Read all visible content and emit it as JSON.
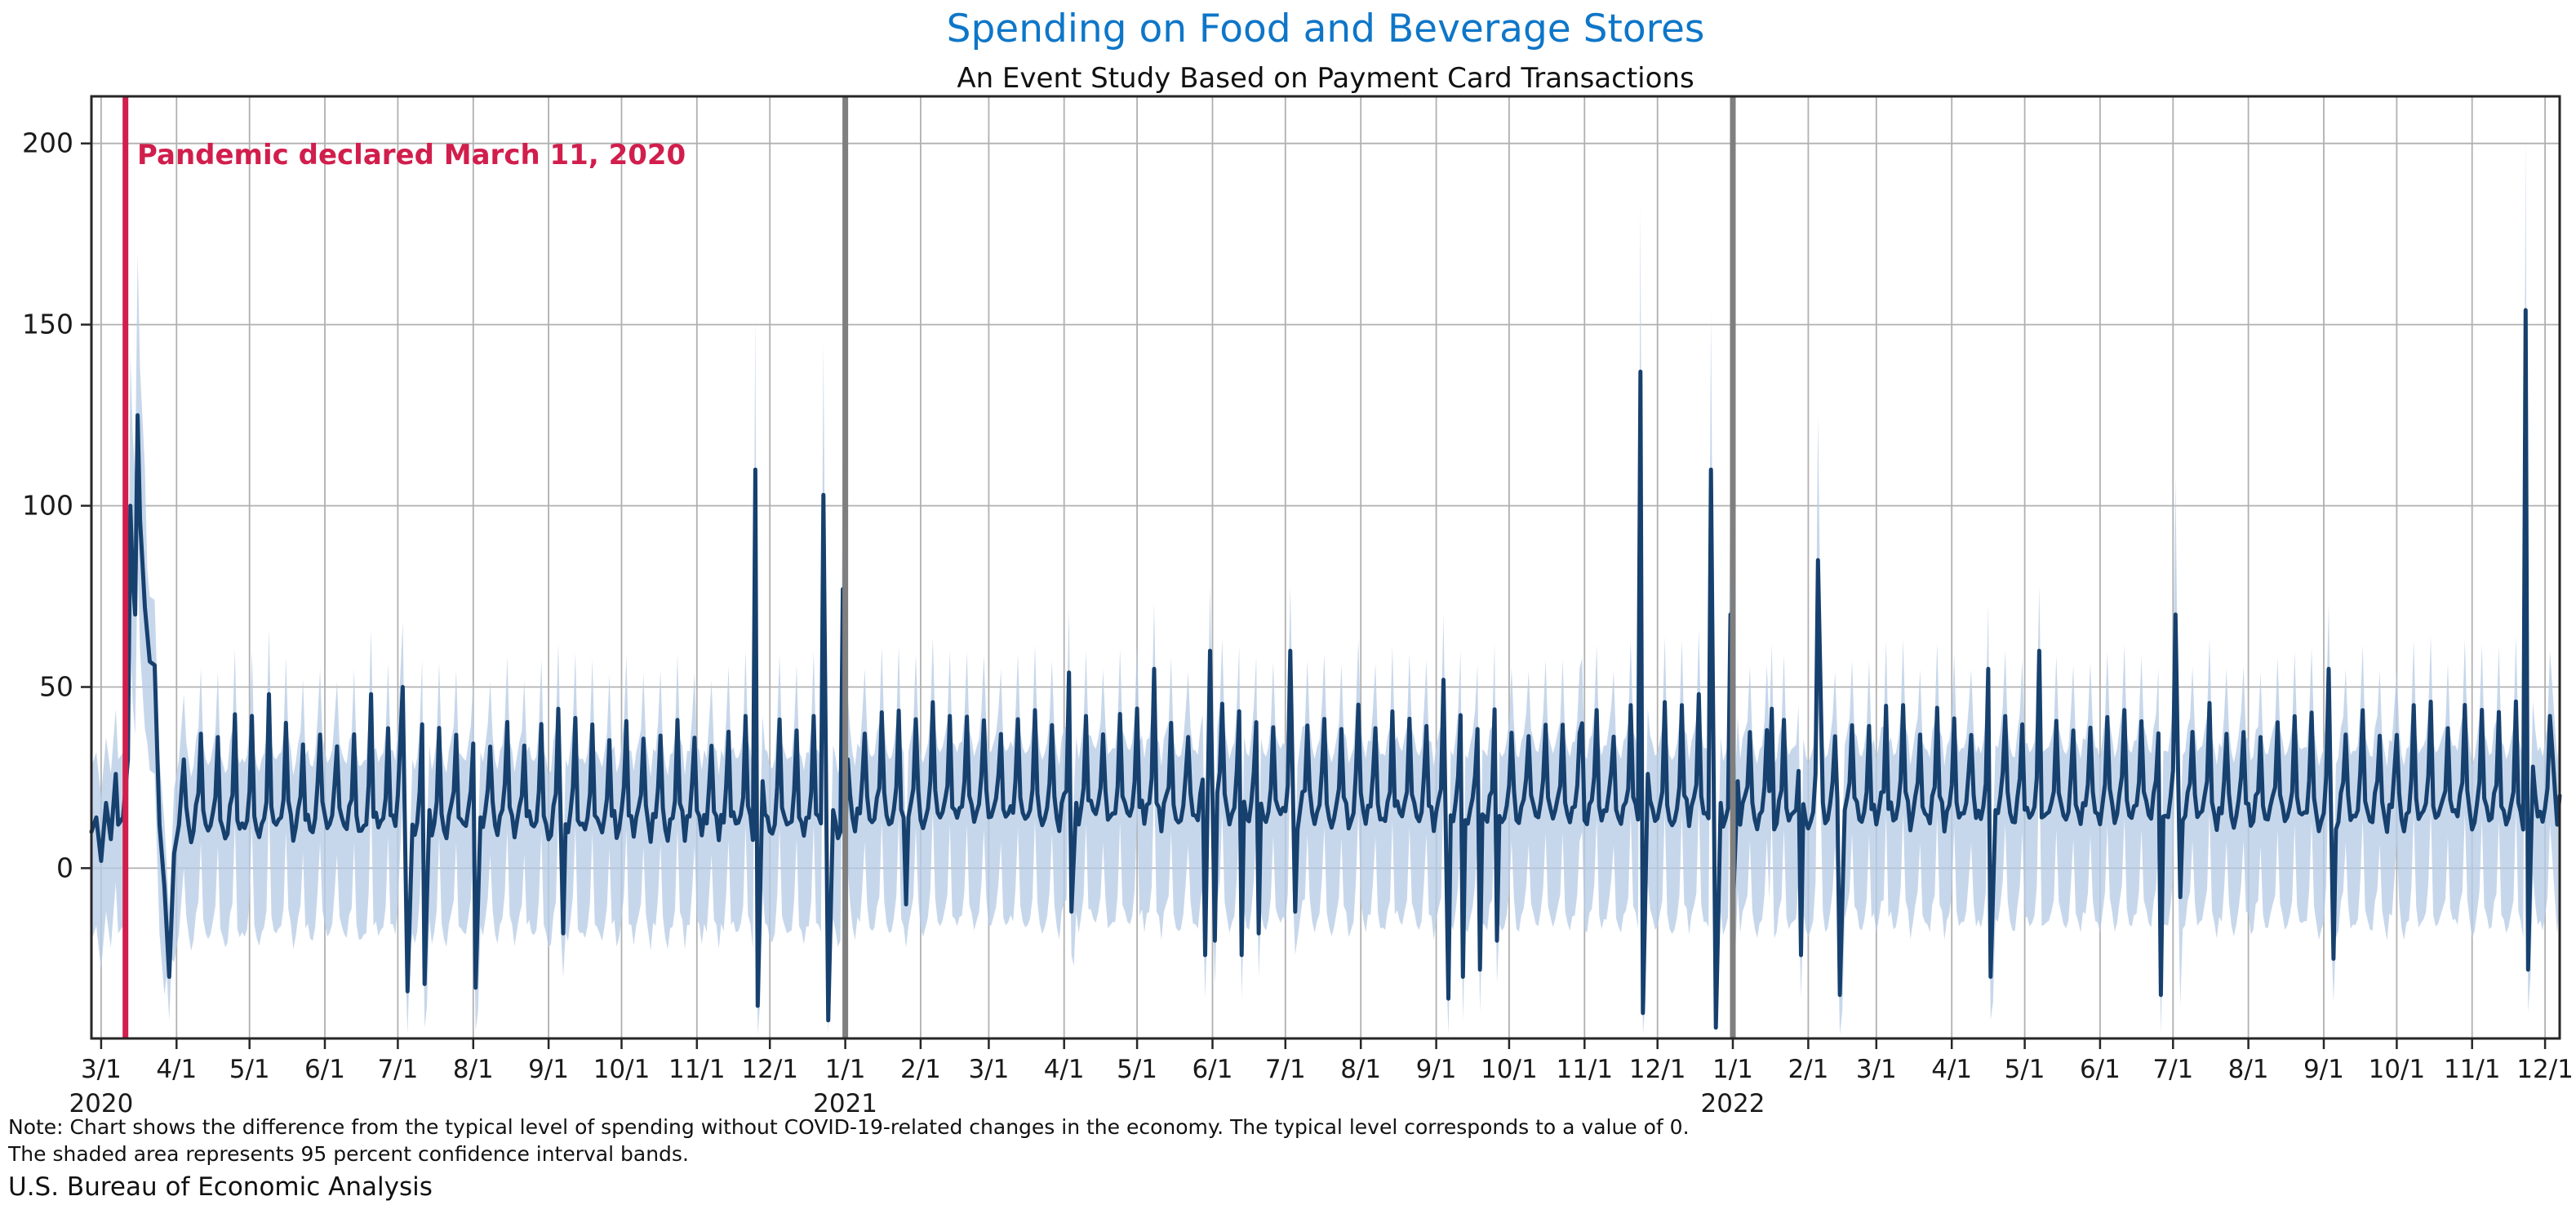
{
  "header": {
    "title": "Spending on Food and Beverage Stores",
    "subtitle": "An Event Study Based on Payment Card Transactions",
    "title_color": "#0e76c8"
  },
  "annotation": {
    "text": "Pandemic declared March 11, 2020",
    "date": "2020-03-11",
    "color": "#d11e4c"
  },
  "footnote": {
    "line1": "Note: Chart shows the difference from the typical level of spending without COVID-19-related changes in the economy. The typical level corresponds to a value of 0.",
    "line2": "The shaded area represents 95 percent confidence interval bands.",
    "source": "U.S. Bureau of Economic Analysis"
  },
  "chart_data": {
    "type": "line",
    "title": "Spending on Food and Beverage Stores",
    "subtitle": "An Event Study Based on Payment Card Transactions",
    "xlabel": "",
    "ylabel": "",
    "grid": true,
    "legend": "none",
    "x_range": {
      "start": "2020-02-26",
      "end": "2022-12-07"
    },
    "y_range": [
      -47,
      213
    ],
    "y_ticks": [
      0,
      50,
      100,
      150,
      200
    ],
    "x_ticks": [
      {
        "date": "2020-03-01",
        "label": "3/1",
        "year": "2020"
      },
      {
        "date": "2020-04-01",
        "label": "4/1"
      },
      {
        "date": "2020-05-01",
        "label": "5/1"
      },
      {
        "date": "2020-06-01",
        "label": "6/1"
      },
      {
        "date": "2020-07-01",
        "label": "7/1"
      },
      {
        "date": "2020-08-01",
        "label": "8/1"
      },
      {
        "date": "2020-09-01",
        "label": "9/1"
      },
      {
        "date": "2020-10-01",
        "label": "10/1"
      },
      {
        "date": "2020-11-01",
        "label": "11/1"
      },
      {
        "date": "2020-12-01",
        "label": "12/1"
      },
      {
        "date": "2021-01-01",
        "label": "1/1",
        "year": "2021"
      },
      {
        "date": "2021-02-01",
        "label": "2/1"
      },
      {
        "date": "2021-03-01",
        "label": "3/1"
      },
      {
        "date": "2021-04-01",
        "label": "4/1"
      },
      {
        "date": "2021-05-01",
        "label": "5/1"
      },
      {
        "date": "2021-06-01",
        "label": "6/1"
      },
      {
        "date": "2021-07-01",
        "label": "7/1"
      },
      {
        "date": "2021-08-01",
        "label": "8/1"
      },
      {
        "date": "2021-09-01",
        "label": "9/1"
      },
      {
        "date": "2021-10-01",
        "label": "10/1"
      },
      {
        "date": "2021-11-01",
        "label": "11/1"
      },
      {
        "date": "2021-12-01",
        "label": "12/1"
      },
      {
        "date": "2022-01-01",
        "label": "1/1",
        "year": "2022"
      },
      {
        "date": "2022-02-01",
        "label": "2/1"
      },
      {
        "date": "2022-03-01",
        "label": "3/1"
      },
      {
        "date": "2022-04-01",
        "label": "4/1"
      },
      {
        "date": "2022-05-01",
        "label": "5/1"
      },
      {
        "date": "2022-06-01",
        "label": "6/1"
      },
      {
        "date": "2022-07-01",
        "label": "7/1"
      },
      {
        "date": "2022-08-01",
        "label": "8/1"
      },
      {
        "date": "2022-09-01",
        "label": "9/1"
      },
      {
        "date": "2022-10-01",
        "label": "10/1"
      },
      {
        "date": "2022-11-01",
        "label": "11/1"
      },
      {
        "date": "2022-12-01",
        "label": "12/1"
      }
    ],
    "event_vlines": [
      {
        "date": "2021-01-01"
      },
      {
        "date": "2022-01-01"
      }
    ],
    "colors": {
      "line": "#16406e",
      "band": "#b7cce5",
      "band_alpha": 0.78,
      "grid": "#b0b0b0",
      "spine": "#262626",
      "vline_year": "#7f7f7f",
      "vline_pandemic": "#d11e4c"
    },
    "weekday_baseline": {
      "mon": 13,
      "tue": 10,
      "wed": 12,
      "thu": 15,
      "fri": 21,
      "sat": 38,
      "sun": 16
    },
    "baseline_drift": [
      {
        "from": "2021-01-01",
        "add": 3
      }
    ],
    "jitter": {
      "seed": 7,
      "base_amp": 3,
      "peak_amp": 5
    },
    "event_bridge_max_gap": 3,
    "band_model": {
      "upper_offset": 18,
      "lower_offset": 30,
      "spike_threshold": 65,
      "spike_upper_offset": 30,
      "spike_upper_scale": 0.12,
      "spike_lower_offset": 25,
      "spike_lower_scale": 0.12,
      "dip_threshold": -10,
      "dip_upper_offset": 18,
      "dip_lower_offset": 12
    },
    "events": [
      [
        "2020-02-26",
        10
      ],
      [
        "2020-02-28",
        14
      ],
      [
        "2020-03-01",
        2
      ],
      [
        "2020-03-03",
        18
      ],
      [
        "2020-03-05",
        8
      ],
      [
        "2020-03-07",
        26
      ],
      [
        "2020-03-08",
        12
      ],
      [
        "2020-03-10",
        14
      ],
      [
        "2020-03-12",
        30
      ],
      [
        "2020-03-13",
        100
      ],
      [
        "2020-03-14",
        80
      ],
      [
        "2020-03-15",
        70
      ],
      [
        "2020-03-16",
        125
      ],
      [
        "2020-03-17",
        96
      ],
      [
        "2020-03-19",
        72
      ],
      [
        "2020-03-21",
        57
      ],
      [
        "2020-03-23",
        56
      ],
      [
        "2020-03-25",
        12
      ],
      [
        "2020-03-27",
        -5
      ],
      [
        "2020-03-29",
        -30
      ],
      [
        "2020-03-31",
        4
      ],
      [
        "2020-04-02",
        12
      ],
      [
        "2020-04-04",
        30
      ],
      [
        "2020-05-09",
        48
      ],
      [
        "2020-06-20",
        48
      ],
      [
        "2020-07-01",
        20
      ],
      [
        "2020-07-03",
        50
      ],
      [
        "2020-07-05",
        -34
      ],
      [
        "2020-07-07",
        12
      ],
      [
        "2020-07-12",
        -32
      ],
      [
        "2020-07-14",
        16
      ],
      [
        "2020-08-02",
        -33
      ],
      [
        "2020-08-04",
        14
      ],
      [
        "2020-09-05",
        44
      ],
      [
        "2020-09-07",
        -18
      ],
      [
        "2020-10-31",
        36
      ],
      [
        "2020-11-21",
        42
      ],
      [
        "2020-11-25",
        110
      ],
      [
        "2020-11-26",
        -38
      ],
      [
        "2020-11-28",
        24
      ],
      [
        "2020-12-12",
        38
      ],
      [
        "2020-12-19",
        42
      ],
      [
        "2020-12-23",
        103
      ],
      [
        "2020-12-25",
        -42
      ],
      [
        "2020-12-27",
        16
      ],
      [
        "2020-12-31",
        77
      ],
      [
        "2021-01-01",
        8
      ],
      [
        "2021-01-02",
        30
      ],
      [
        "2021-01-16",
        43
      ],
      [
        "2021-01-26",
        -10
      ],
      [
        "2021-02-13",
        42
      ],
      [
        "2021-04-03",
        54
      ],
      [
        "2021-04-04",
        -12
      ],
      [
        "2021-04-06",
        18
      ],
      [
        "2021-05-08",
        55
      ],
      [
        "2021-05-09",
        18
      ],
      [
        "2021-05-29",
        -24
      ],
      [
        "2021-05-31",
        60
      ],
      [
        "2021-06-02",
        -20
      ],
      [
        "2021-06-13",
        -24
      ],
      [
        "2021-06-20",
        -18
      ],
      [
        "2021-07-03",
        60
      ],
      [
        "2021-07-05",
        -12
      ],
      [
        "2021-09-04",
        52
      ],
      [
        "2021-09-06",
        -36
      ],
      [
        "2021-09-12",
        -30
      ],
      [
        "2021-09-19",
        -28
      ],
      [
        "2021-09-26",
        -20
      ],
      [
        "2021-10-31",
        40
      ],
      [
        "2021-11-20",
        45
      ],
      [
        "2021-11-24",
        137
      ],
      [
        "2021-11-25",
        -40
      ],
      [
        "2021-11-27",
        26
      ],
      [
        "2021-12-11",
        45
      ],
      [
        "2021-12-18",
        48
      ],
      [
        "2021-12-23",
        110
      ],
      [
        "2021-12-25",
        -44
      ],
      [
        "2021-12-27",
        18
      ],
      [
        "2021-12-31",
        70
      ],
      [
        "2022-01-01",
        -12
      ],
      [
        "2022-01-03",
        24
      ],
      [
        "2022-01-17",
        44
      ],
      [
        "2022-01-29",
        -24
      ],
      [
        "2022-02-05",
        85
      ],
      [
        "2022-02-07",
        18
      ],
      [
        "2022-02-14",
        -35
      ],
      [
        "2022-02-16",
        16
      ],
      [
        "2022-03-12",
        45
      ],
      [
        "2022-04-16",
        55
      ],
      [
        "2022-04-17",
        -30
      ],
      [
        "2022-04-19",
        16
      ],
      [
        "2022-05-07",
        60
      ],
      [
        "2022-05-08",
        14
      ],
      [
        "2022-06-26",
        -35
      ],
      [
        "2022-07-02",
        70
      ],
      [
        "2022-07-04",
        -8
      ],
      [
        "2022-09-03",
        55
      ],
      [
        "2022-09-05",
        -25
      ],
      [
        "2022-10-08",
        45
      ],
      [
        "2022-11-19",
        46
      ],
      [
        "2022-11-23",
        154
      ],
      [
        "2022-11-24",
        -28
      ],
      [
        "2022-11-26",
        28
      ],
      [
        "2022-12-03",
        42
      ],
      [
        "2022-12-06",
        12
      ],
      [
        "2022-12-07",
        20
      ]
    ]
  }
}
